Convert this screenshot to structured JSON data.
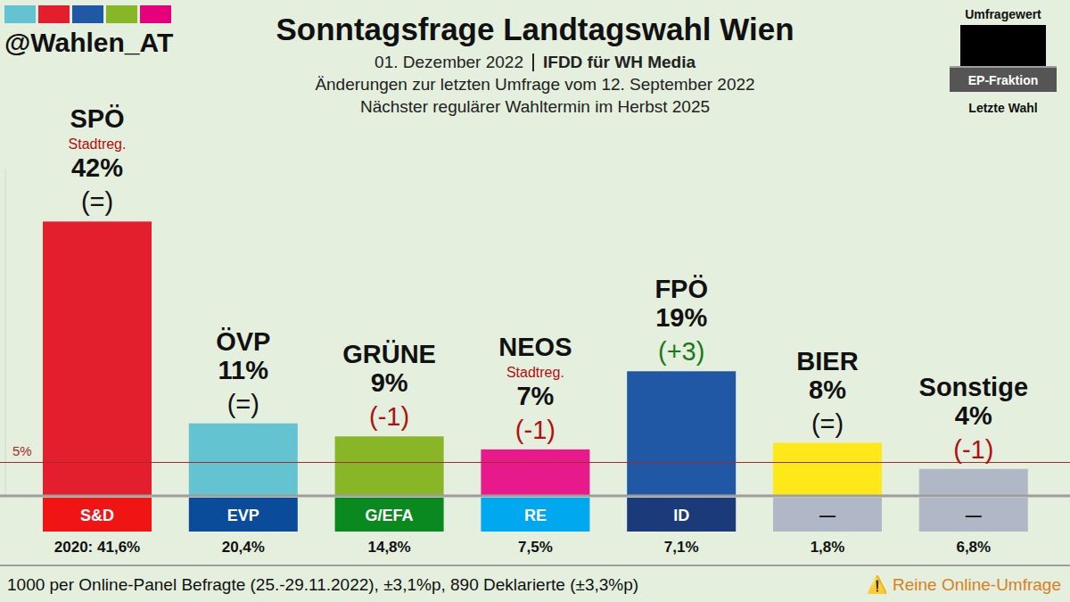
{
  "chart_data": {
    "type": "bar",
    "handle": "@Wahlen_AT",
    "title": "Sonntagsfrage Landtagswahl Wien",
    "date": "01. Dezember 2022",
    "source": "IFDD für WH Media",
    "subtitle": "Änderungen zur letzten Umfrage vom 12. September 2022",
    "next_election": "Nächster regulärer Wahltermin im Herbst 2025",
    "key_labels": {
      "value": "Umfragewert",
      "group": "EP-Fraktion",
      "last": "Letzte Wahl"
    },
    "categories": [
      "SPÖ",
      "ÖVP",
      "GRÜNE",
      "NEOS",
      "FPÖ",
      "BIER",
      "Sonstige"
    ],
    "values": [
      42,
      11,
      9,
      7,
      19,
      8,
      4
    ],
    "value_labels": [
      "42%",
      "11%",
      "9%",
      "7%",
      "19%",
      "8%",
      "4%"
    ],
    "colors": [
      "#e31e2d",
      "#63c3d0",
      "#88b626",
      "#e8198b",
      "#2158a6",
      "#ffe81a",
      "#b0b8c8"
    ],
    "data_labels": true,
    "notes": [
      "Stadtreg.",
      null,
      null,
      "Stadtreg.",
      null,
      null,
      null
    ],
    "changes": [
      "(=)",
      "(=)",
      "(-1)",
      "(-1)",
      "(+3)",
      "(=)",
      "(-1)"
    ],
    "change_colors": [
      "#111111",
      "#111111",
      "#b01010",
      "#b01010",
      "#1a7a1a",
      "#111111",
      "#b01010"
    ],
    "ep_groups": [
      "S&D",
      "EVP",
      "G/EFA",
      "RE",
      "ID",
      "—",
      "—"
    ],
    "ep_group_colors": [
      "#f01414",
      "#0a4c9a",
      "#0a8a1e",
      "#00a8f0",
      "#1a3a7a",
      "#b0b8c8",
      "#b0b8c8"
    ],
    "last_election": [
      "2020: 41,6%",
      "20,4%",
      "14,8%",
      "7,5%",
      "7,1%",
      "1,8%",
      "6,8%"
    ],
    "ylim": [
      0,
      50
    ],
    "yticks": [
      {
        "value": 5,
        "label": "5%"
      }
    ],
    "grid": false,
    "footer": "1000 per Online-Panel Befragte (25.-29.11.2022), ±3,1%p, 890 Deklarierte (±3,3%p)",
    "warning": "⚠️ Reine Online-Umfrage"
  }
}
